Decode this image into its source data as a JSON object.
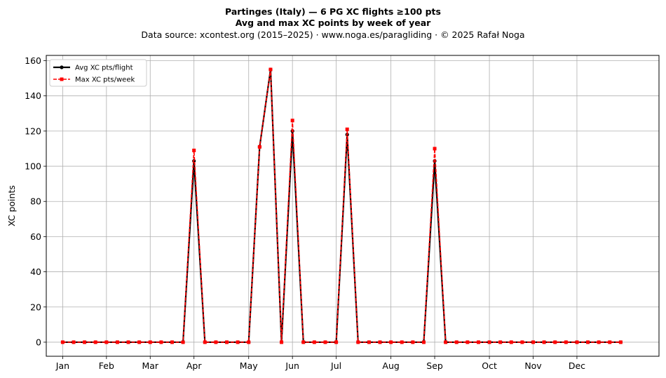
{
  "chart_data": {
    "type": "line",
    "title_line1": "Partinges (Italy)  —  6 PG XC flights ≥100 pts",
    "title_line2": "Avg and max XC points by week of year",
    "subtitle": "Data source: xcontest.org (2015–2025)  ·  www.noga.es/paragliding  ·  © 2025 Rafał Noga",
    "xlabel": "",
    "ylabel": "XC points",
    "xlim": [
      -1.5,
      54.5
    ],
    "ylim": [
      -8,
      163
    ],
    "yticks": [
      0,
      20,
      40,
      60,
      80,
      100,
      120,
      140,
      160
    ],
    "grid": true,
    "legend_position": "top-left",
    "month_ticks": [
      {
        "label": "Jan",
        "week": 0
      },
      {
        "label": "Feb",
        "week": 4
      },
      {
        "label": "Mar",
        "week": 8
      },
      {
        "label": "Apr",
        "week": 12
      },
      {
        "label": "May",
        "week": 17
      },
      {
        "label": "Jun",
        "week": 21
      },
      {
        "label": "Jul",
        "week": 25
      },
      {
        "label": "Aug",
        "week": 30
      },
      {
        "label": "Sep",
        "week": 34
      },
      {
        "label": "Oct",
        "week": 39
      },
      {
        "label": "Nov",
        "week": 43
      },
      {
        "label": "Dec",
        "week": 47
      }
    ],
    "x": [
      0,
      1,
      2,
      3,
      4,
      5,
      6,
      7,
      8,
      9,
      10,
      11,
      12,
      13,
      14,
      15,
      16,
      17,
      18,
      19,
      20,
      21,
      22,
      23,
      24,
      25,
      26,
      27,
      28,
      29,
      30,
      31,
      32,
      33,
      34,
      35,
      36,
      37,
      38,
      39,
      40,
      41,
      42,
      43,
      44,
      45,
      46,
      47,
      48,
      49,
      50,
      51
    ],
    "series": [
      {
        "name": "Avg XC pts/flight",
        "color": "#000000",
        "style": "solid",
        "marker": "circle",
        "values": [
          0,
          0,
          0,
          0,
          0,
          0,
          0,
          0,
          0,
          0,
          0,
          0,
          103,
          0,
          0,
          0,
          0,
          0,
          111,
          155,
          0,
          120,
          0,
          0,
          0,
          0,
          118,
          0,
          0,
          0,
          0,
          0,
          0,
          0,
          103,
          0,
          0,
          0,
          0,
          0,
          0,
          0,
          0,
          0,
          0,
          0,
          0,
          0,
          0,
          0,
          0,
          0
        ]
      },
      {
        "name": "Max XC pts/week",
        "color": "#ff0000",
        "style": "dashed",
        "marker": "square",
        "values": [
          0,
          0,
          0,
          0,
          0,
          0,
          0,
          0,
          0,
          0,
          0,
          0,
          109,
          0,
          0,
          0,
          0,
          0,
          111,
          155,
          0,
          126,
          0,
          0,
          0,
          0,
          121,
          0,
          0,
          0,
          0,
          0,
          0,
          0,
          110,
          0,
          0,
          0,
          0,
          0,
          0,
          0,
          0,
          0,
          0,
          0,
          0,
          0,
          0,
          0,
          0,
          0
        ]
      }
    ]
  }
}
